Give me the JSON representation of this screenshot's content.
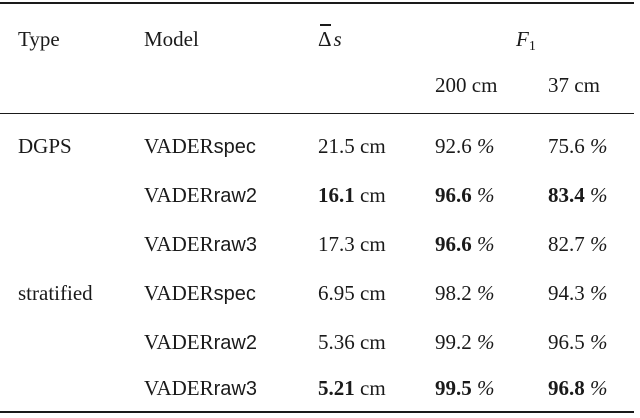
{
  "table": {
    "headers": {
      "type": "Type",
      "model": "Model",
      "delta_s_symbol": "Δ",
      "delta_s_var": "s",
      "f1_var": "F",
      "f1_sub": "1",
      "f1_200": "200 cm",
      "f1_37": "37 cm"
    },
    "unit_cm": "cm",
    "unit_pct": "%",
    "rows": [
      {
        "type": "DGPS",
        "model_base": "VADER",
        "model_suffix": "spec",
        "ds": "21.5",
        "f200": "92.6",
        "f37": "75.6"
      },
      {
        "type": "",
        "model_base": "VADER",
        "model_suffix": "raw2",
        "ds": "16.1",
        "f200": "96.6",
        "f37": "83.4"
      },
      {
        "type": "",
        "model_base": "VADER",
        "model_suffix": "raw3",
        "ds": "17.3",
        "f200": "96.6",
        "f37": "82.7"
      },
      {
        "type": "stratified",
        "model_base": "VADER",
        "model_suffix": "spec",
        "ds": "6.95",
        "f200": "98.2",
        "f37": "94.3"
      },
      {
        "type": "",
        "model_base": "VADER",
        "model_suffix": "raw2",
        "ds": "5.36",
        "f200": "99.2",
        "f37": "96.5"
      },
      {
        "type": "",
        "model_base": "VADER",
        "model_suffix": "raw3",
        "ds": "5.21",
        "f200": "99.5",
        "f37": "96.8"
      }
    ]
  }
}
